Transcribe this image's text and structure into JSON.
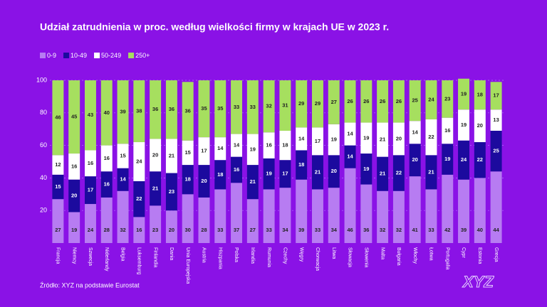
{
  "chart_data": {
    "type": "stacked_bar",
    "title": "Udział zatrudnienia w proc. według wielkości firmy w krajach UE w 2023 r.",
    "source": "Źródło: XYZ na podstawie Eurostat",
    "logo": "XYZ",
    "categories": [
      "Francja",
      "Niemcy",
      "Szwecja",
      "Niderlandy",
      "Belgia",
      "Luksemburg",
      "Finlandia",
      "Dania",
      "Unia Europejska",
      "Austria",
      "Hiszpania",
      "Polska",
      "Irlandia",
      "Rumunia",
      "Czechy",
      "Węgry",
      "Chorwacja",
      "Litwa",
      "Słowacja",
      "Słowenia",
      "Malta",
      "Bułgaria",
      "Włochy",
      "Łotwa",
      "Portugalia",
      "Cypr",
      "Estonia",
      "Grecja"
    ],
    "series": [
      {
        "name": "0-9",
        "color": "#b77cf2",
        "values": [
          27,
          19,
          24,
          28,
          32,
          16,
          23,
          20,
          30,
          28,
          33,
          37,
          27,
          33,
          34,
          39,
          33,
          34,
          46,
          36,
          32,
          32,
          41,
          33,
          42,
          39,
          40,
          44
        ]
      },
      {
        "name": "10-49",
        "color": "#1c0a9e",
        "values": [
          15,
          20,
          17,
          16,
          14,
          22,
          21,
          23,
          18,
          20,
          18,
          16,
          21,
          19,
          17,
          18,
          21,
          20,
          14,
          19,
          21,
          22,
          20,
          21,
          19,
          24,
          22,
          25
        ]
      },
      {
        "name": "50-249",
        "color": "#ffffff",
        "values": [
          12,
          16,
          16,
          16,
          15,
          24,
          20,
          21,
          15,
          17,
          14,
          14,
          19,
          16,
          18,
          14,
          17,
          19,
          14,
          19,
          21,
          20,
          14,
          22,
          16,
          19,
          20,
          13
        ]
      },
      {
        "name": "250+",
        "color": "#a6df5f",
        "values": [
          46,
          45,
          43,
          40,
          39,
          38,
          36,
          36,
          36,
          35,
          35,
          33,
          33,
          32,
          31,
          29,
          29,
          27,
          26,
          26,
          26,
          26,
          25,
          24,
          23,
          19,
          18,
          17
        ]
      }
    ],
    "ylim": [
      0,
      100
    ],
    "yticks": [
      20,
      40,
      60,
      80,
      100
    ],
    "grid": true
  }
}
